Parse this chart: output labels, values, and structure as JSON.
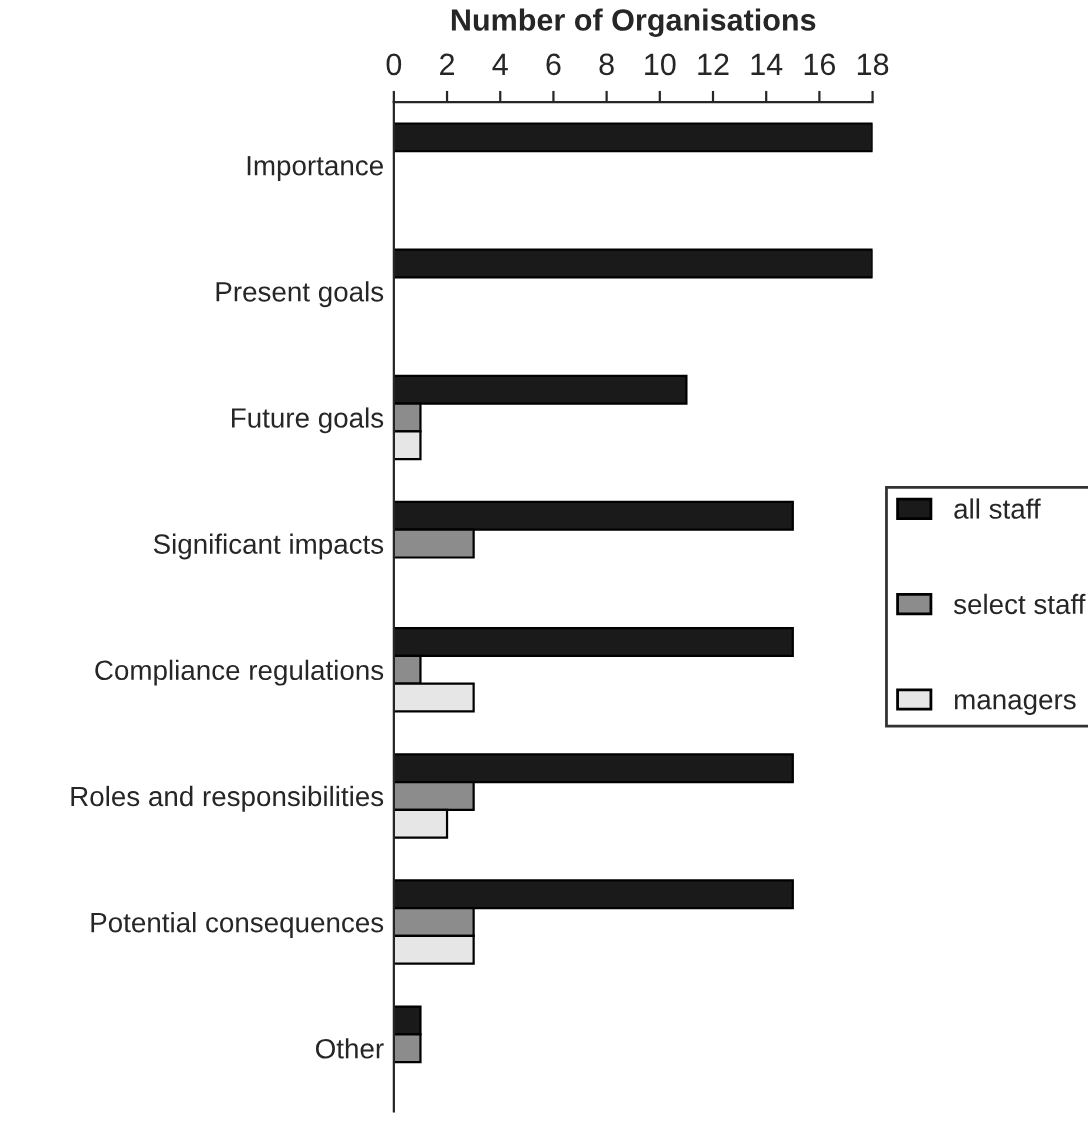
{
  "chart_data": {
    "type": "bar",
    "orientation": "horizontal",
    "xlabel": "Number of Organisations",
    "categories": [
      "Importance",
      "Present goals",
      "Future goals",
      "Significant impacts",
      "Compliance regulations",
      "Roles and responsibilities",
      "Potential consequences",
      "Other"
    ],
    "series": [
      {
        "name": "all staff",
        "color": "#1a1a1a",
        "values": [
          18,
          18,
          11,
          15,
          15,
          15,
          15,
          1
        ]
      },
      {
        "name": "select staff",
        "color": "#8c8c8c",
        "values": [
          null,
          null,
          1,
          3,
          1,
          3,
          3,
          1
        ]
      },
      {
        "name": "managers",
        "color": "#e6e6e6",
        "values": [
          null,
          null,
          1,
          null,
          3,
          2,
          3,
          null
        ]
      }
    ],
    "xlim": [
      0,
      18
    ],
    "xticks": [
      0,
      2,
      4,
      6,
      8,
      10,
      12,
      14,
      16,
      18
    ],
    "grid": false,
    "legend": "right"
  }
}
